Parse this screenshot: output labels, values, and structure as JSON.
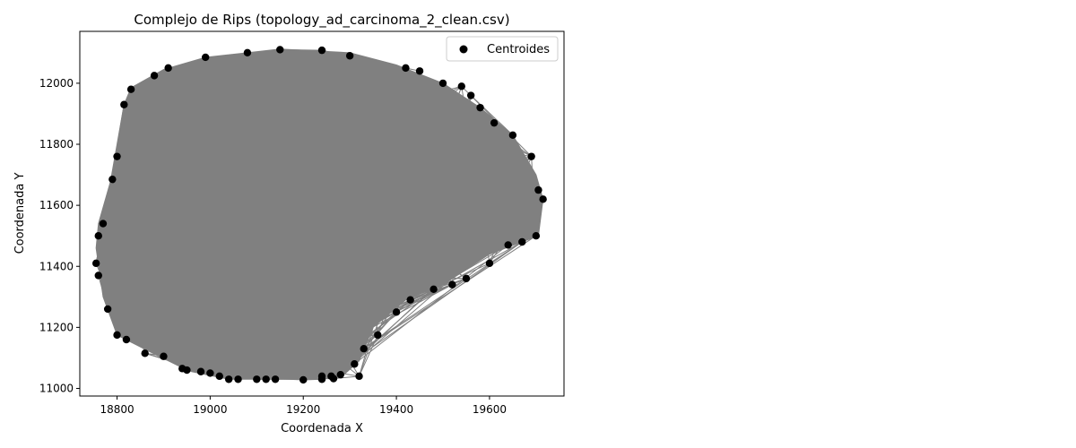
{
  "chart_data": {
    "type": "scatter",
    "title": "Complejo de Rips (topology_ad_carcinoma_2_clean.csv)",
    "xlabel": "Coordenada X",
    "ylabel": "Coordenada Y",
    "xlim": [
      18720,
      19760
    ],
    "ylim": [
      10975,
      12170
    ],
    "xticks": [
      18800,
      19000,
      19200,
      19400,
      19600
    ],
    "yticks": [
      11000,
      11200,
      11400,
      11600,
      11800,
      12000
    ],
    "xtick_labels": [
      "18800",
      "19000",
      "19200",
      "19400",
      "19600"
    ],
    "ytick_labels": [
      "11000",
      "11200",
      "11400",
      "11600",
      "11800",
      "12000"
    ],
    "grid": false,
    "legend_position": "top-right",
    "colors": {
      "points": "#000000",
      "edges": "#808080"
    },
    "series": [
      {
        "name": "Centroides",
        "kind": "points",
        "x": [
          19150,
          19240,
          19080,
          19300,
          18990,
          18910,
          18880,
          18830,
          18815,
          18800,
          18790,
          18770,
          18760,
          18755,
          18760,
          18780,
          18800,
          18820,
          18860,
          18900,
          18940,
          18980,
          19020,
          19060,
          19100,
          19140,
          19200,
          19240,
          19265,
          19280,
          19310,
          19330,
          19360,
          19400,
          19430,
          19480,
          19520,
          19550,
          19600,
          19640,
          19670,
          19700,
          19715,
          19705,
          19690,
          19650,
          19610,
          19580,
          19560,
          19540,
          19500,
          19450,
          19420,
          19260,
          19240,
          19040,
          19000,
          18950,
          19120,
          19320
        ],
        "y": [
          12110,
          12108,
          12100,
          12090,
          12085,
          12050,
          12025,
          11980,
          11930,
          11760,
          11685,
          11540,
          11500,
          11410,
          11370,
          11260,
          11175,
          11160,
          11115,
          11105,
          11065,
          11055,
          11040,
          11030,
          11030,
          11030,
          11028,
          11030,
          11032,
          11045,
          11080,
          11130,
          11175,
          11250,
          11290,
          11325,
          11340,
          11360,
          11410,
          11470,
          11480,
          11500,
          11620,
          11650,
          11760,
          11830,
          11870,
          11920,
          11960,
          11990,
          12000,
          12040,
          12050,
          11040,
          11040,
          11030,
          11050,
          11060,
          11030,
          11040
        ]
      },
      {
        "name": "",
        "kind": "edges",
        "hull_x": [
          19150,
          19300,
          19400,
          19500,
          19580,
          19650,
          19700,
          19715,
          19705,
          19600,
          19500,
          19420,
          19350,
          19320,
          19280,
          19200,
          19120,
          19040,
          18960,
          18890,
          18800,
          18770,
          18755,
          18760,
          18790,
          18815,
          18830,
          18900,
          18990,
          19080
        ],
        "hull_y": [
          12112,
          12100,
          12060,
          12000,
          11920,
          11830,
          11700,
          11620,
          11500,
          11440,
          11340,
          11290,
          11200,
          11090,
          11035,
          11030,
          11030,
          11030,
          11055,
          11105,
          11175,
          11300,
          11460,
          11540,
          11700,
          11930,
          11985,
          12045,
          12085,
          12100
        ]
      }
    ],
    "legend": {
      "label": "Centroides"
    }
  }
}
